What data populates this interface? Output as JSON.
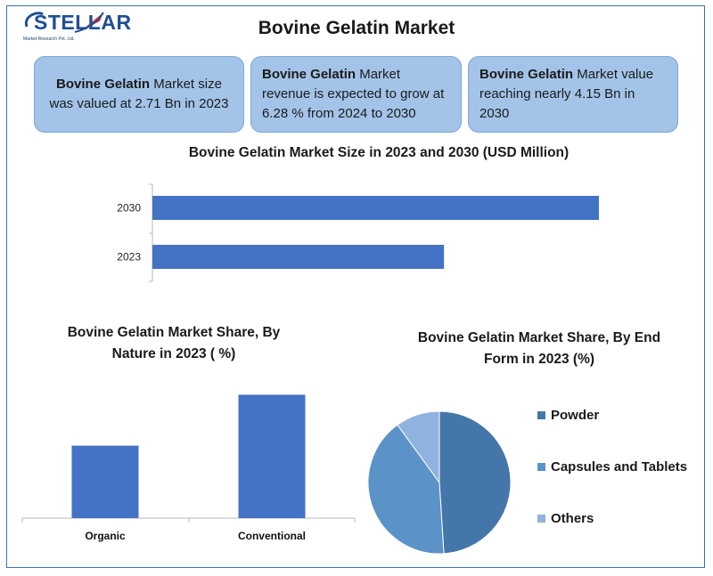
{
  "logo": {
    "text": "STELLAR",
    "subtitle": "Market Research Pvt. Ltd."
  },
  "title": "Bovine Gelatin Market",
  "cards": [
    {
      "bold": "Bovine Gelatin",
      "text": " Market size was valued at 2.71 Bn in 2023"
    },
    {
      "bold": "Bovine Gelatin",
      "text": " Market revenue is expected to grow at 6.28 % from 2024 to 2030"
    },
    {
      "bold": "Bovine Gelatin",
      "text": " Market value reaching nearly 4.15 Bn in 2030"
    }
  ],
  "colors": {
    "bar": "#4472c4",
    "card_bg": "#a3c4e8",
    "frame": "#3d6fb6"
  },
  "chart_data": [
    {
      "type": "bar",
      "orientation": "horizontal",
      "title": "Bovine Gelatin Market Size in 2023 and 2030 (USD Million)",
      "categories": [
        "2030",
        "2023"
      ],
      "values": [
        4150,
        2710
      ],
      "xlim": [
        0,
        4150
      ]
    },
    {
      "type": "bar",
      "title": "Bovine Gelatin Market Share, By Nature in 2023 ( %)",
      "categories": [
        "Organic",
        "Conventional"
      ],
      "values": [
        37,
        63
      ],
      "ylim": [
        0,
        70
      ]
    },
    {
      "type": "pie",
      "title": "Bovine Gelatin Market Share, By End Form in 2023 (%)",
      "categories": [
        "Powder",
        "Capsules and Tablets",
        "Others"
      ],
      "values": [
        49,
        41,
        10
      ],
      "colors": [
        "#4576a9",
        "#5b93c9",
        "#8fb3de"
      ],
      "legend": "right"
    }
  ]
}
